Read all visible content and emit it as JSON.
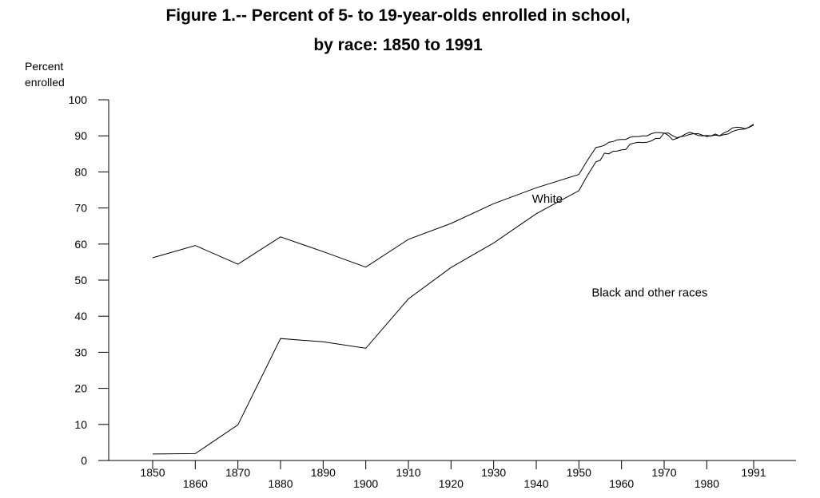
{
  "chart_data": {
    "type": "line",
    "title_line1": "Figure 1.-- Percent of 5- to 19-year-olds enrolled in school,",
    "title_line2": "by race: 1850 to 1991",
    "ylabel_line1": "Percent",
    "ylabel_line2": "enrolled",
    "xlabel": "",
    "xlim": [
      1850,
      1991
    ],
    "ylim": [
      0,
      100
    ],
    "x_ticks": [
      "1850",
      "1860",
      "1870",
      "1880",
      "1890",
      "1900",
      "1910",
      "1920",
      "1930",
      "1940",
      "1950",
      "1960",
      "1970",
      "1980",
      "1991"
    ],
    "y_ticks": [
      "0",
      "10",
      "20",
      "30",
      "40",
      "50",
      "60",
      "70",
      "80",
      "90",
      "100"
    ],
    "grid": false,
    "legend": "none",
    "series": [
      {
        "name": "White",
        "points": [
          [
            1850,
            56.2
          ],
          [
            1860,
            59.6
          ],
          [
            1870,
            54.4
          ],
          [
            1880,
            62.0
          ],
          [
            1890,
            57.9
          ],
          [
            1900,
            53.6
          ],
          [
            1910,
            61.3
          ],
          [
            1920,
            65.7
          ],
          [
            1930,
            71.2
          ],
          [
            1940,
            75.6
          ],
          [
            1950,
            79.3
          ],
          [
            1952,
            83.2
          ],
          [
            1954,
            86.8
          ],
          [
            1955,
            87.0
          ],
          [
            1956,
            87.4
          ],
          [
            1957,
            88.2
          ],
          [
            1958,
            88.4
          ],
          [
            1959,
            88.9
          ],
          [
            1960,
            89.0
          ],
          [
            1961,
            89.0
          ],
          [
            1962,
            89.6
          ],
          [
            1963,
            89.8
          ],
          [
            1964,
            89.8
          ],
          [
            1965,
            90.0
          ],
          [
            1966,
            90.0
          ],
          [
            1967,
            90.6
          ],
          [
            1968,
            90.9
          ],
          [
            1969,
            90.9
          ],
          [
            1970,
            90.7
          ],
          [
            1971,
            90.8
          ],
          [
            1972,
            90.0
          ],
          [
            1973,
            89.5
          ],
          [
            1974,
            89.8
          ],
          [
            1975,
            90.0
          ],
          [
            1976,
            90.4
          ],
          [
            1977,
            90.6
          ],
          [
            1978,
            90.1
          ],
          [
            1979,
            90.0
          ],
          [
            1980,
            90.1
          ],
          [
            1981,
            90.0
          ],
          [
            1982,
            90.2
          ],
          [
            1983,
            90.0
          ],
          [
            1984,
            90.3
          ],
          [
            1985,
            90.5
          ],
          [
            1986,
            91.2
          ],
          [
            1987,
            91.6
          ],
          [
            1988,
            91.8
          ],
          [
            1989,
            91.9
          ],
          [
            1990,
            92.5
          ],
          [
            1991,
            93.2
          ]
        ]
      },
      {
        "name": "Black and other races",
        "points": [
          [
            1850,
            1.8
          ],
          [
            1860,
            1.9
          ],
          [
            1870,
            9.9
          ],
          [
            1880,
            33.8
          ],
          [
            1890,
            32.9
          ],
          [
            1900,
            31.1
          ],
          [
            1910,
            44.8
          ],
          [
            1920,
            53.5
          ],
          [
            1930,
            60.3
          ],
          [
            1940,
            68.4
          ],
          [
            1950,
            74.8
          ],
          [
            1952,
            79.0
          ],
          [
            1953,
            80.9
          ],
          [
            1954,
            82.8
          ],
          [
            1955,
            83.2
          ],
          [
            1956,
            85.2
          ],
          [
            1957,
            85.0
          ],
          [
            1958,
            85.7
          ],
          [
            1959,
            85.8
          ],
          [
            1960,
            86.1
          ],
          [
            1961,
            86.2
          ],
          [
            1962,
            87.7
          ],
          [
            1963,
            88.0
          ],
          [
            1964,
            88.2
          ],
          [
            1965,
            88.1
          ],
          [
            1966,
            88.2
          ],
          [
            1967,
            88.6
          ],
          [
            1968,
            89.3
          ],
          [
            1969,
            89.3
          ],
          [
            1970,
            90.8
          ],
          [
            1971,
            90.1
          ],
          [
            1972,
            88.9
          ],
          [
            1973,
            89.3
          ],
          [
            1974,
            89.8
          ],
          [
            1975,
            90.5
          ],
          [
            1976,
            91.0
          ],
          [
            1977,
            90.6
          ],
          [
            1978,
            90.6
          ],
          [
            1979,
            90.2
          ],
          [
            1980,
            89.8
          ],
          [
            1981,
            90.0
          ],
          [
            1982,
            90.5
          ],
          [
            1983,
            90.0
          ],
          [
            1984,
            90.8
          ],
          [
            1985,
            91.3
          ],
          [
            1986,
            92.2
          ],
          [
            1987,
            92.4
          ],
          [
            1988,
            92.3
          ],
          [
            1989,
            92.0
          ],
          [
            1990,
            92.4
          ],
          [
            1991,
            93.0
          ]
        ]
      }
    ],
    "annotations": [
      {
        "text": "White",
        "x": 1939,
        "y": 71.5
      },
      {
        "text": "Black and other races",
        "x": 1953,
        "y": 45.5
      }
    ]
  }
}
